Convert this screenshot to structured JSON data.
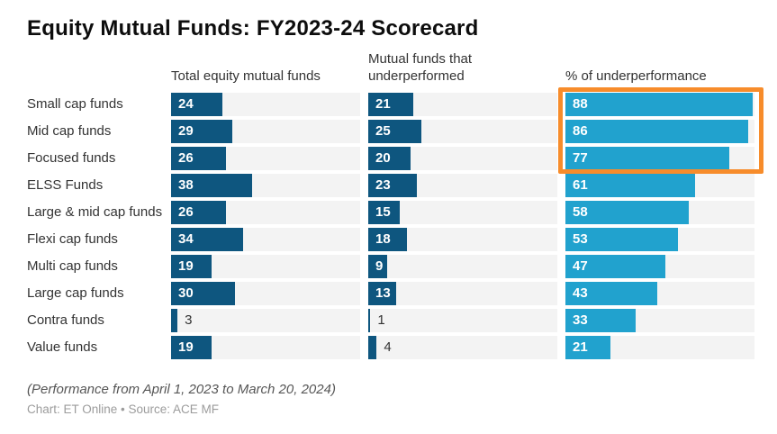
{
  "title": "Equity Mutual Funds: FY2023-24 Scorecard",
  "columns": {
    "col1": "Total equity mutual funds",
    "col2": "Mutual funds that underperformed",
    "col3": "% of underperformance"
  },
  "chart_data": {
    "type": "bar",
    "orientation": "horizontal",
    "categories": [
      "Small cap funds",
      "Mid cap funds",
      "Focused funds",
      "ELSS Funds",
      "Large & mid cap funds",
      "Flexi cap funds",
      "Multi cap funds",
      "Large cap funds",
      "Contra funds",
      "Value funds"
    ],
    "series": [
      {
        "name": "Total equity mutual funds",
        "color": "#0e567f",
        "values": [
          24,
          29,
          26,
          38,
          26,
          34,
          19,
          30,
          3,
          19
        ]
      },
      {
        "name": "Mutual funds that underperformed",
        "color": "#0e567f",
        "values": [
          21,
          25,
          20,
          23,
          15,
          18,
          9,
          13,
          1,
          4
        ]
      },
      {
        "name": "% of underperformance",
        "color": "#21a2ce",
        "values": [
          88,
          86,
          77,
          61,
          58,
          53,
          47,
          43,
          33,
          21
        ]
      }
    ],
    "title": "Equity Mutual Funds: FY2023-24 Scorecard",
    "xlabel": "",
    "ylabel": "",
    "xlim": [
      0,
      89
    ],
    "grid": false,
    "legend": "none",
    "annotation": "Orange rectangle highlights the top three rows (88, 86, 77) of the % of underperformance column"
  },
  "colors": {
    "dark_blue": "#0e567f",
    "light_blue": "#21a2ce",
    "highlight_orange": "#f78c2b",
    "track_gray": "#f3f3f3"
  },
  "footer": {
    "note": "(Performance from April 1, 2023 to March 20, 2024)",
    "credit": "Chart: ET Online • Source: ACE MF"
  }
}
